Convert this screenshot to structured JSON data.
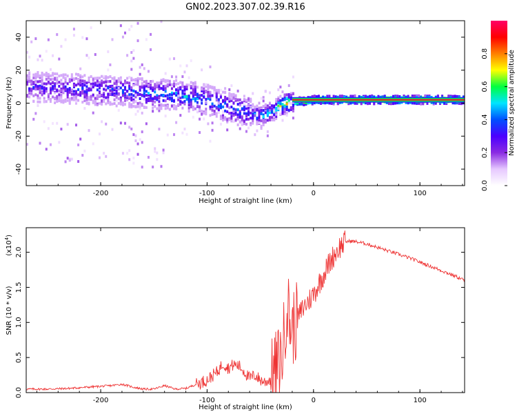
{
  "title": "GN02.2023.307.02.39.R16",
  "chart_data": [
    {
      "type": "heatmap",
      "xlabel": "Height of straight line (km)",
      "ylabel": "Frequency (Hz)",
      "xlim": [
        -270,
        142
      ],
      "ylim": [
        -50,
        50
      ],
      "xticks": [
        -200,
        -100,
        0,
        100
      ],
      "xtick_labels": [
        "-200",
        "-100",
        "0",
        "100"
      ],
      "yticks": [
        -40,
        -20,
        0,
        20,
        40
      ],
      "ytick_labels": [
        "-40",
        "-20",
        "0",
        "20",
        "40"
      ],
      "colorbar": {
        "label": "Normalized spectral amplitude",
        "range": [
          0,
          1
        ],
        "ticks": [
          0.0,
          0.2,
          0.4,
          0.6,
          0.8
        ],
        "tick_labels": [
          "0.0",
          "0.2",
          "0.4",
          "0.6",
          "0.8"
        ],
        "colormap": [
          "#ffffff",
          "#e6c8ff",
          "#8a2be2",
          "#4b00ff",
          "#0050ff",
          "#00e5ff",
          "#00ff40",
          "#ffff00",
          "#ff8000",
          "#ff0000",
          "#ff0066"
        ]
      },
      "ridge": {
        "x": [
          -270,
          -240,
          -200,
          -160,
          -130,
          -100,
          -80,
          -60,
          -50,
          -40,
          -30,
          -20,
          -10,
          0,
          50,
          100,
          142
        ],
        "y": [
          10,
          9,
          8,
          6,
          5,
          2,
          -3,
          -6,
          -8,
          -5,
          -1,
          1,
          1,
          2,
          2,
          2,
          2
        ],
        "peak_amplitude": [
          0.35,
          0.35,
          0.4,
          0.45,
          0.5,
          0.5,
          0.45,
          0.45,
          0.5,
          0.6,
          0.8,
          0.85,
          0.85,
          0.9,
          0.95,
          0.95,
          0.9
        ]
      }
    },
    {
      "type": "line",
      "xlabel": "Height of straight line (km)",
      "ylabel": "SNR (10 * v/v)",
      "yscale_label": "(x10",
      "yscale_exponent": "4",
      "yscale_suffix": ")",
      "xlim": [
        -270,
        142
      ],
      "ylim": [
        0.0,
        2.35
      ],
      "xticks": [
        -200,
        -100,
        0,
        100
      ],
      "xtick_labels": [
        "-200",
        "-100",
        "0",
        "100"
      ],
      "yticks": [
        0.0,
        0.5,
        1.0,
        1.5,
        2.0
      ],
      "ytick_labels": [
        "0.0",
        "0.5",
        "1.0",
        "1.5",
        "2.0"
      ],
      "color": "#ee3333",
      "series": [
        {
          "x": [
            -270,
            -250,
            -230,
            -210,
            -190,
            -180,
            -170,
            -160,
            -150,
            -140,
            -130,
            -120,
            -110,
            -100,
            -90,
            -85,
            -80,
            -75,
            -70,
            -65,
            -60,
            -55,
            -50,
            -45,
            -40,
            -35,
            -30,
            -27,
            -25,
            -22,
            -20,
            -15,
            -10,
            -5,
            0,
            5,
            10,
            15,
            20,
            25,
            30,
            35,
            40,
            50,
            60,
            70,
            80,
            90,
            100,
            110,
            120,
            130,
            142
          ],
          "y": [
            0.05,
            0.05,
            0.06,
            0.08,
            0.1,
            0.12,
            0.08,
            0.05,
            0.05,
            0.1,
            0.05,
            0.06,
            0.12,
            0.18,
            0.3,
            0.42,
            0.35,
            0.4,
            0.38,
            0.3,
            0.2,
            0.25,
            0.18,
            0.15,
            0.2,
            0.35,
            0.5,
            0.9,
            1.3,
            1.0,
            0.9,
            1.05,
            1.2,
            1.3,
            1.4,
            1.55,
            1.7,
            1.85,
            1.98,
            2.08,
            2.15,
            2.16,
            2.15,
            2.12,
            2.07,
            2.02,
            1.97,
            1.92,
            1.86,
            1.8,
            1.74,
            1.68,
            1.6
          ]
        }
      ]
    }
  ]
}
